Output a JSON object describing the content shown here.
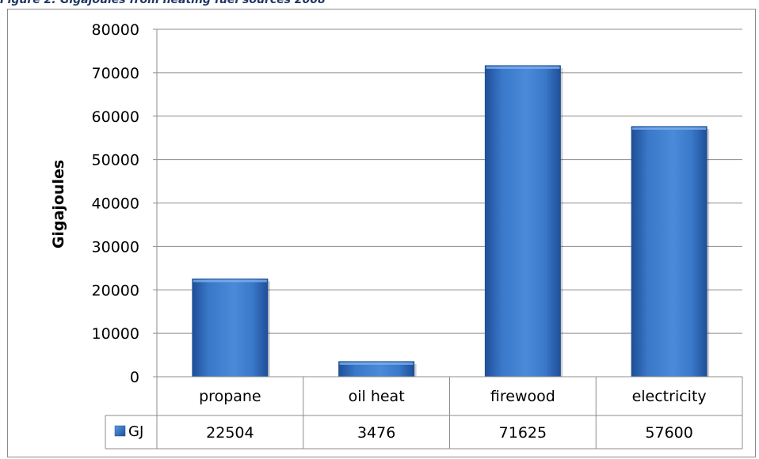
{
  "figure_caption": "Figure 2: Gigajoules from heating fuel sources 2008",
  "chart_data": {
    "type": "bar",
    "categories": [
      "propane",
      "oil heat",
      "firewood",
      "electricity"
    ],
    "series": [
      {
        "name": "GJ",
        "values": [
          22504,
          3476,
          71625,
          57600
        ],
        "color": "#3a78c9"
      }
    ],
    "title": "",
    "xlabel": "",
    "ylabel": "Gigajoules",
    "ylim": [
      0,
      80000
    ],
    "yticks": [
      "0",
      "10000",
      "20000",
      "30000",
      "40000",
      "50000",
      "60000",
      "70000",
      "80000"
    ],
    "grid": true,
    "legend": "data-table",
    "data_table": true
  }
}
